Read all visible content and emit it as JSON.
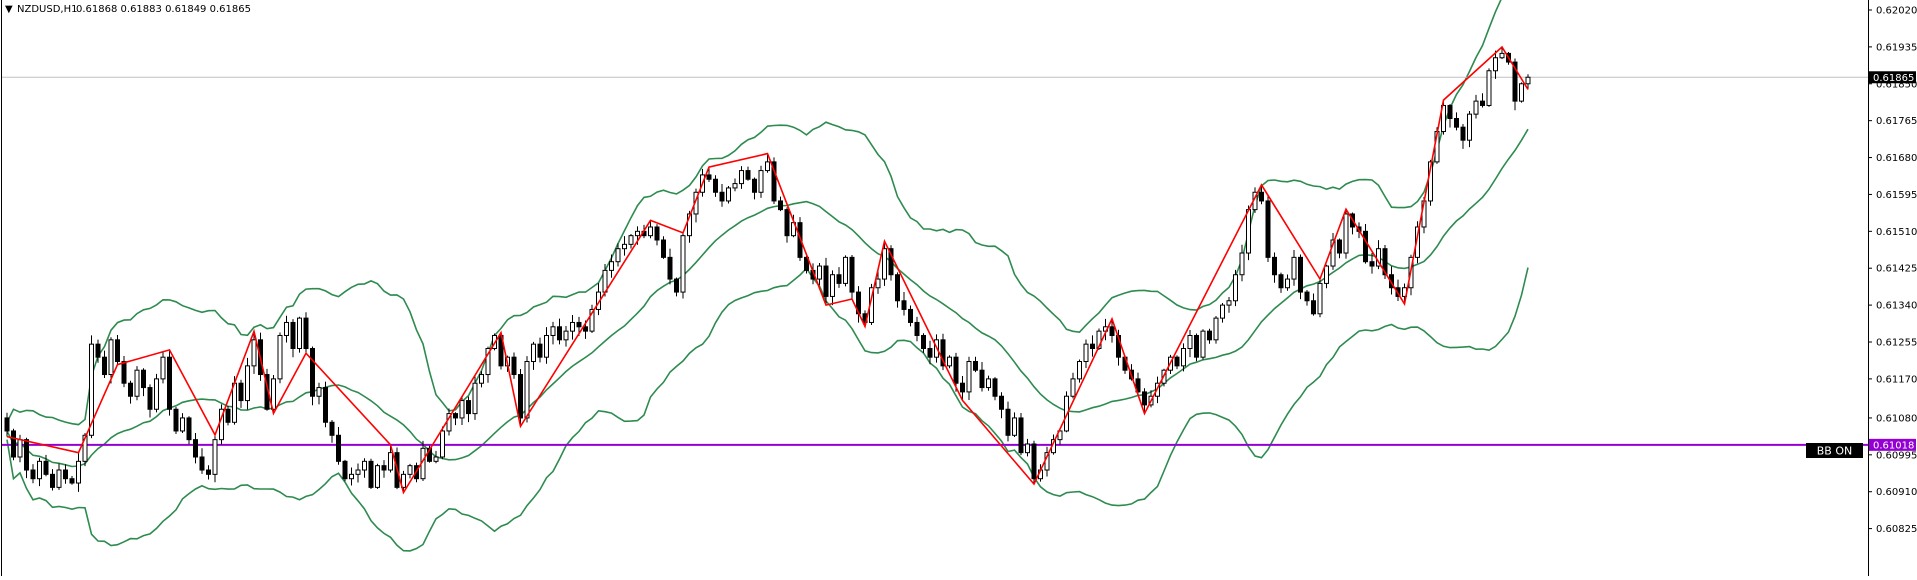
{
  "header": {
    "arrow": "▼",
    "symbol": "NZDUSD,H1",
    "ohlc": "0.61868 0.61883 0.61849 0.61865"
  },
  "indicator_label": "BB ON",
  "colors": {
    "background": "#ffffff",
    "candle_bull_body": "#ffffff",
    "candle_bear_body": "#000000",
    "candle_outline": "#000000",
    "bollinger": "#2e8b4f",
    "zigzag": "#ff0000",
    "support_line": "#9400d3",
    "current_price_line": "#c0c0c0",
    "price_tag": "#000000",
    "price_tag_text": "#ffffff"
  },
  "chart_data": {
    "type": "candlestick",
    "title": "NZDUSD,H1",
    "price_axis": {
      "ticks": [
        "0.62020",
        "0.61935",
        "0.61850",
        "0.61765",
        "0.61680",
        "0.61595",
        "0.61510",
        "0.61425",
        "0.61340",
        "0.61255",
        "0.61170",
        "0.61080",
        "0.60995",
        "0.60910",
        "0.60825"
      ],
      "ylim": [
        0.60795,
        0.62035
      ]
    },
    "current_price": "0.61865",
    "level_line": {
      "label": "0.61018",
      "value": 0.61018
    },
    "grid": false,
    "close": [
      0.6105,
      0.6099,
      0.6103,
      0.6096,
      0.6094,
      0.6098,
      0.6095,
      0.6092,
      0.6096,
      0.6094,
      0.6093,
      0.6098,
      0.6104,
      0.6125,
      0.6122,
      0.6118,
      0.6126,
      0.6121,
      0.6116,
      0.6113,
      0.6119,
      0.6115,
      0.611,
      0.6117,
      0.6122,
      0.611,
      0.6105,
      0.6108,
      0.6103,
      0.6099,
      0.6096,
      0.6095,
      0.6103,
      0.611,
      0.6107,
      0.6116,
      0.6112,
      0.612,
      0.6126,
      0.6118,
      0.611,
      0.6117,
      0.6127,
      0.613,
      0.6124,
      0.6131,
      0.6124,
      0.6113,
      0.6115,
      0.6107,
      0.6104,
      0.6098,
      0.6094,
      0.6095,
      0.6096,
      0.6098,
      0.6092,
      0.6097,
      0.6096,
      0.61,
      0.6092,
      0.6095,
      0.6097,
      0.6094,
      0.6101,
      0.6098,
      0.6099,
      0.6105,
      0.6109,
      0.6108,
      0.6112,
      0.6109,
      0.6116,
      0.6118,
      0.6124,
      0.6127,
      0.612,
      0.6122,
      0.6118,
      0.6108,
      0.6121,
      0.6125,
      0.6122,
      0.6127,
      0.6129,
      0.6126,
      0.6128,
      0.613,
      0.6129,
      0.6128,
      0.6133,
      0.6137,
      0.6142,
      0.6144,
      0.6147,
      0.6148,
      0.615,
      0.6151,
      0.615,
      0.6152,
      0.6149,
      0.6145,
      0.614,
      0.6137,
      0.615,
      0.6155,
      0.616,
      0.6164,
      0.6163,
      0.616,
      0.6158,
      0.6161,
      0.6162,
      0.6165,
      0.6163,
      0.616,
      0.6165,
      0.6167,
      0.6158,
      0.6156,
      0.615,
      0.6153,
      0.6145,
      0.6142,
      0.614,
      0.6143,
      0.6136,
      0.6141,
      0.6139,
      0.6145,
      0.6137,
      0.6132,
      0.613,
      0.6138,
      0.614,
      0.6147,
      0.6141,
      0.6135,
      0.6133,
      0.613,
      0.6127,
      0.6124,
      0.6122,
      0.6126,
      0.612,
      0.6122,
      0.6116,
      0.6114,
      0.6121,
      0.6119,
      0.6115,
      0.6117,
      0.6113,
      0.611,
      0.6104,
      0.6108,
      0.61,
      0.6102,
      0.6094,
      0.6096,
      0.61,
      0.6103,
      0.6105,
      0.6113,
      0.6117,
      0.6121,
      0.6125,
      0.6124,
      0.6128,
      0.6129,
      0.6127,
      0.6122,
      0.6119,
      0.6117,
      0.6114,
      0.6111,
      0.6113,
      0.6116,
      0.6119,
      0.6122,
      0.612,
      0.6124,
      0.6127,
      0.6122,
      0.6128,
      0.6126,
      0.6131,
      0.6134,
      0.6135,
      0.6141,
      0.6146,
      0.6156,
      0.616,
      0.6158,
      0.6145,
      0.6141,
      0.6138,
      0.614,
      0.6145,
      0.6137,
      0.6135,
      0.6132,
      0.6139,
      0.6143,
      0.6149,
      0.6146,
      0.6155,
      0.6152,
      0.6151,
      0.6144,
      0.6143,
      0.6147,
      0.6141,
      0.6138,
      0.6136,
      0.6138,
      0.6145,
      0.6152,
      0.6158,
      0.6167,
      0.6174,
      0.618,
      0.6177,
      0.6175,
      0.6172,
      0.6178,
      0.6181,
      0.618,
      0.6188,
      0.6191,
      0.6192,
      0.619,
      0.6181,
      0.6185,
      0.61865
    ]
  }
}
